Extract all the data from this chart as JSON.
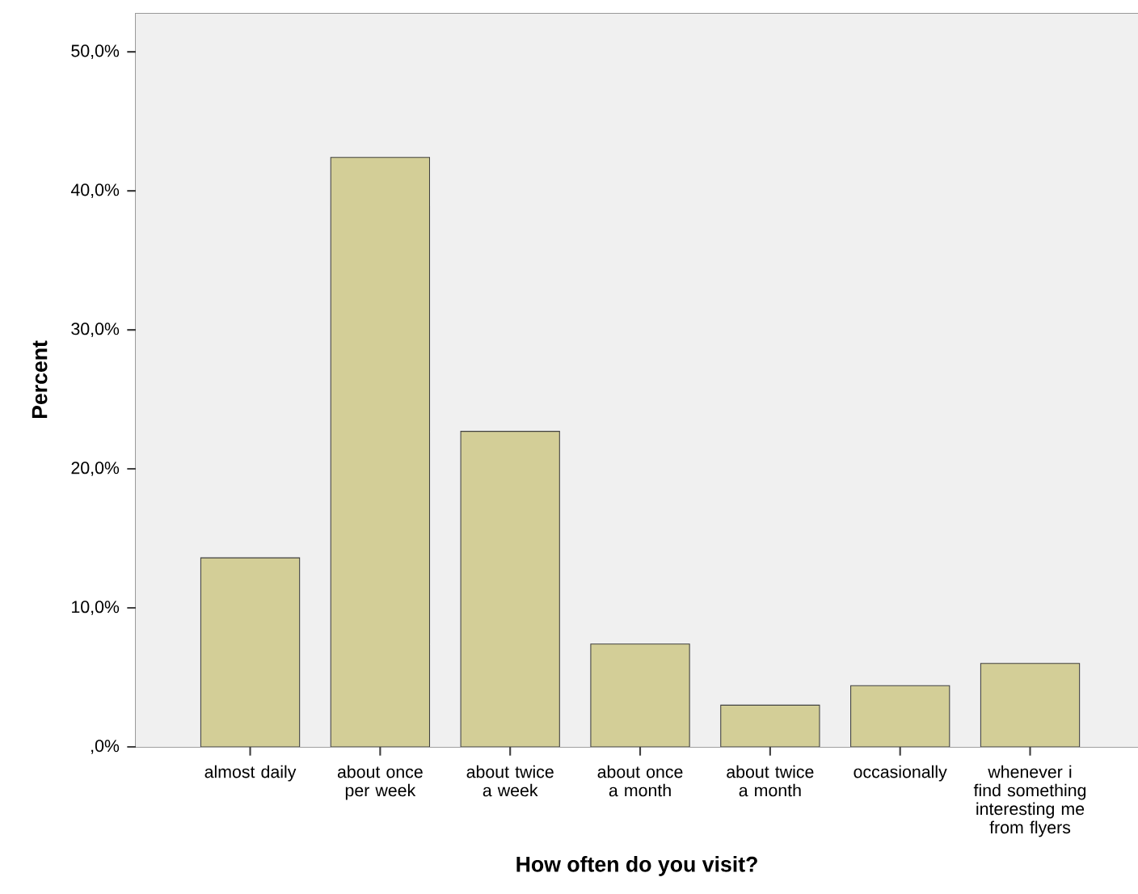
{
  "chart_data": {
    "type": "bar",
    "xlabel": "How often do you visit?",
    "ylabel": "Percent",
    "categories": [
      "almost daily",
      "about once per week",
      "about twice a week",
      "about once a month",
      "about twice a month",
      "occasionally",
      "whenever i find something interesting me from flyers"
    ],
    "values": [
      13.6,
      42.4,
      22.7,
      7.4,
      3.0,
      4.4,
      6.0
    ],
    "color": "#d3ce97",
    "ylim": [
      0,
      52.8
    ],
    "yticks": [
      {
        "value": 0,
        "label": ",0%"
      },
      {
        "value": 10,
        "label": "10,0%"
      },
      {
        "value": 20,
        "label": "20,0%"
      },
      {
        "value": 30,
        "label": "30,0%"
      },
      {
        "value": 40,
        "label": "40,0%"
      },
      {
        "value": 50,
        "label": "50,0%"
      }
    ]
  }
}
